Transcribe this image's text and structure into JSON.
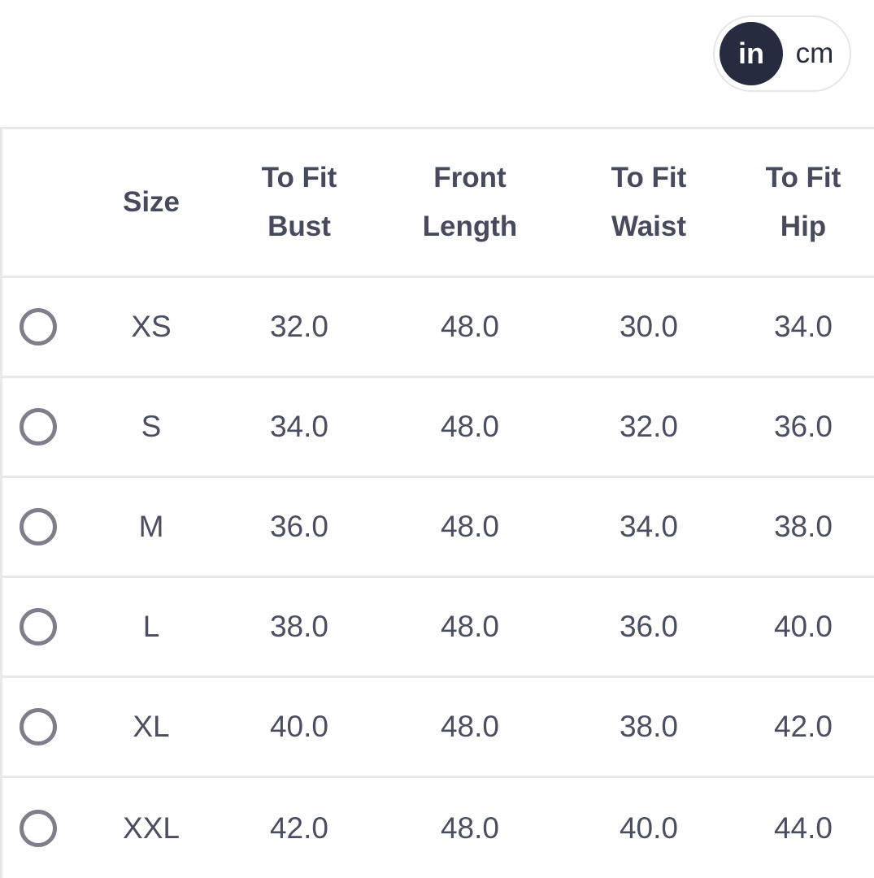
{
  "unit_toggle": {
    "options": [
      "in",
      "cm"
    ],
    "selected": "in"
  },
  "table": {
    "headers": {
      "size": "Size",
      "bust": [
        "To Fit",
        "Bust"
      ],
      "front_length": [
        "Front",
        "Length"
      ],
      "waist": [
        "To Fit",
        "Waist"
      ],
      "hip": [
        "To Fit",
        "Hip"
      ]
    },
    "rows": [
      {
        "size": "XS",
        "bust": "32.0",
        "front_length": "48.0",
        "waist": "30.0",
        "hip": "34.0"
      },
      {
        "size": "S",
        "bust": "34.0",
        "front_length": "48.0",
        "waist": "32.0",
        "hip": "36.0"
      },
      {
        "size": "M",
        "bust": "36.0",
        "front_length": "48.0",
        "waist": "34.0",
        "hip": "38.0"
      },
      {
        "size": "L",
        "bust": "38.0",
        "front_length": "48.0",
        "waist": "36.0",
        "hip": "40.0"
      },
      {
        "size": "XL",
        "bust": "40.0",
        "front_length": "48.0",
        "waist": "38.0",
        "hip": "42.0"
      },
      {
        "size": "XXL",
        "bust": "42.0",
        "front_length": "48.0",
        "waist": "40.0",
        "hip": "44.0"
      }
    ]
  },
  "colors": {
    "toggle_active_bg": "#272b3f",
    "text": "#474a5c",
    "radio_border": "#7e7f8b",
    "divider": "#e9e9ec"
  }
}
